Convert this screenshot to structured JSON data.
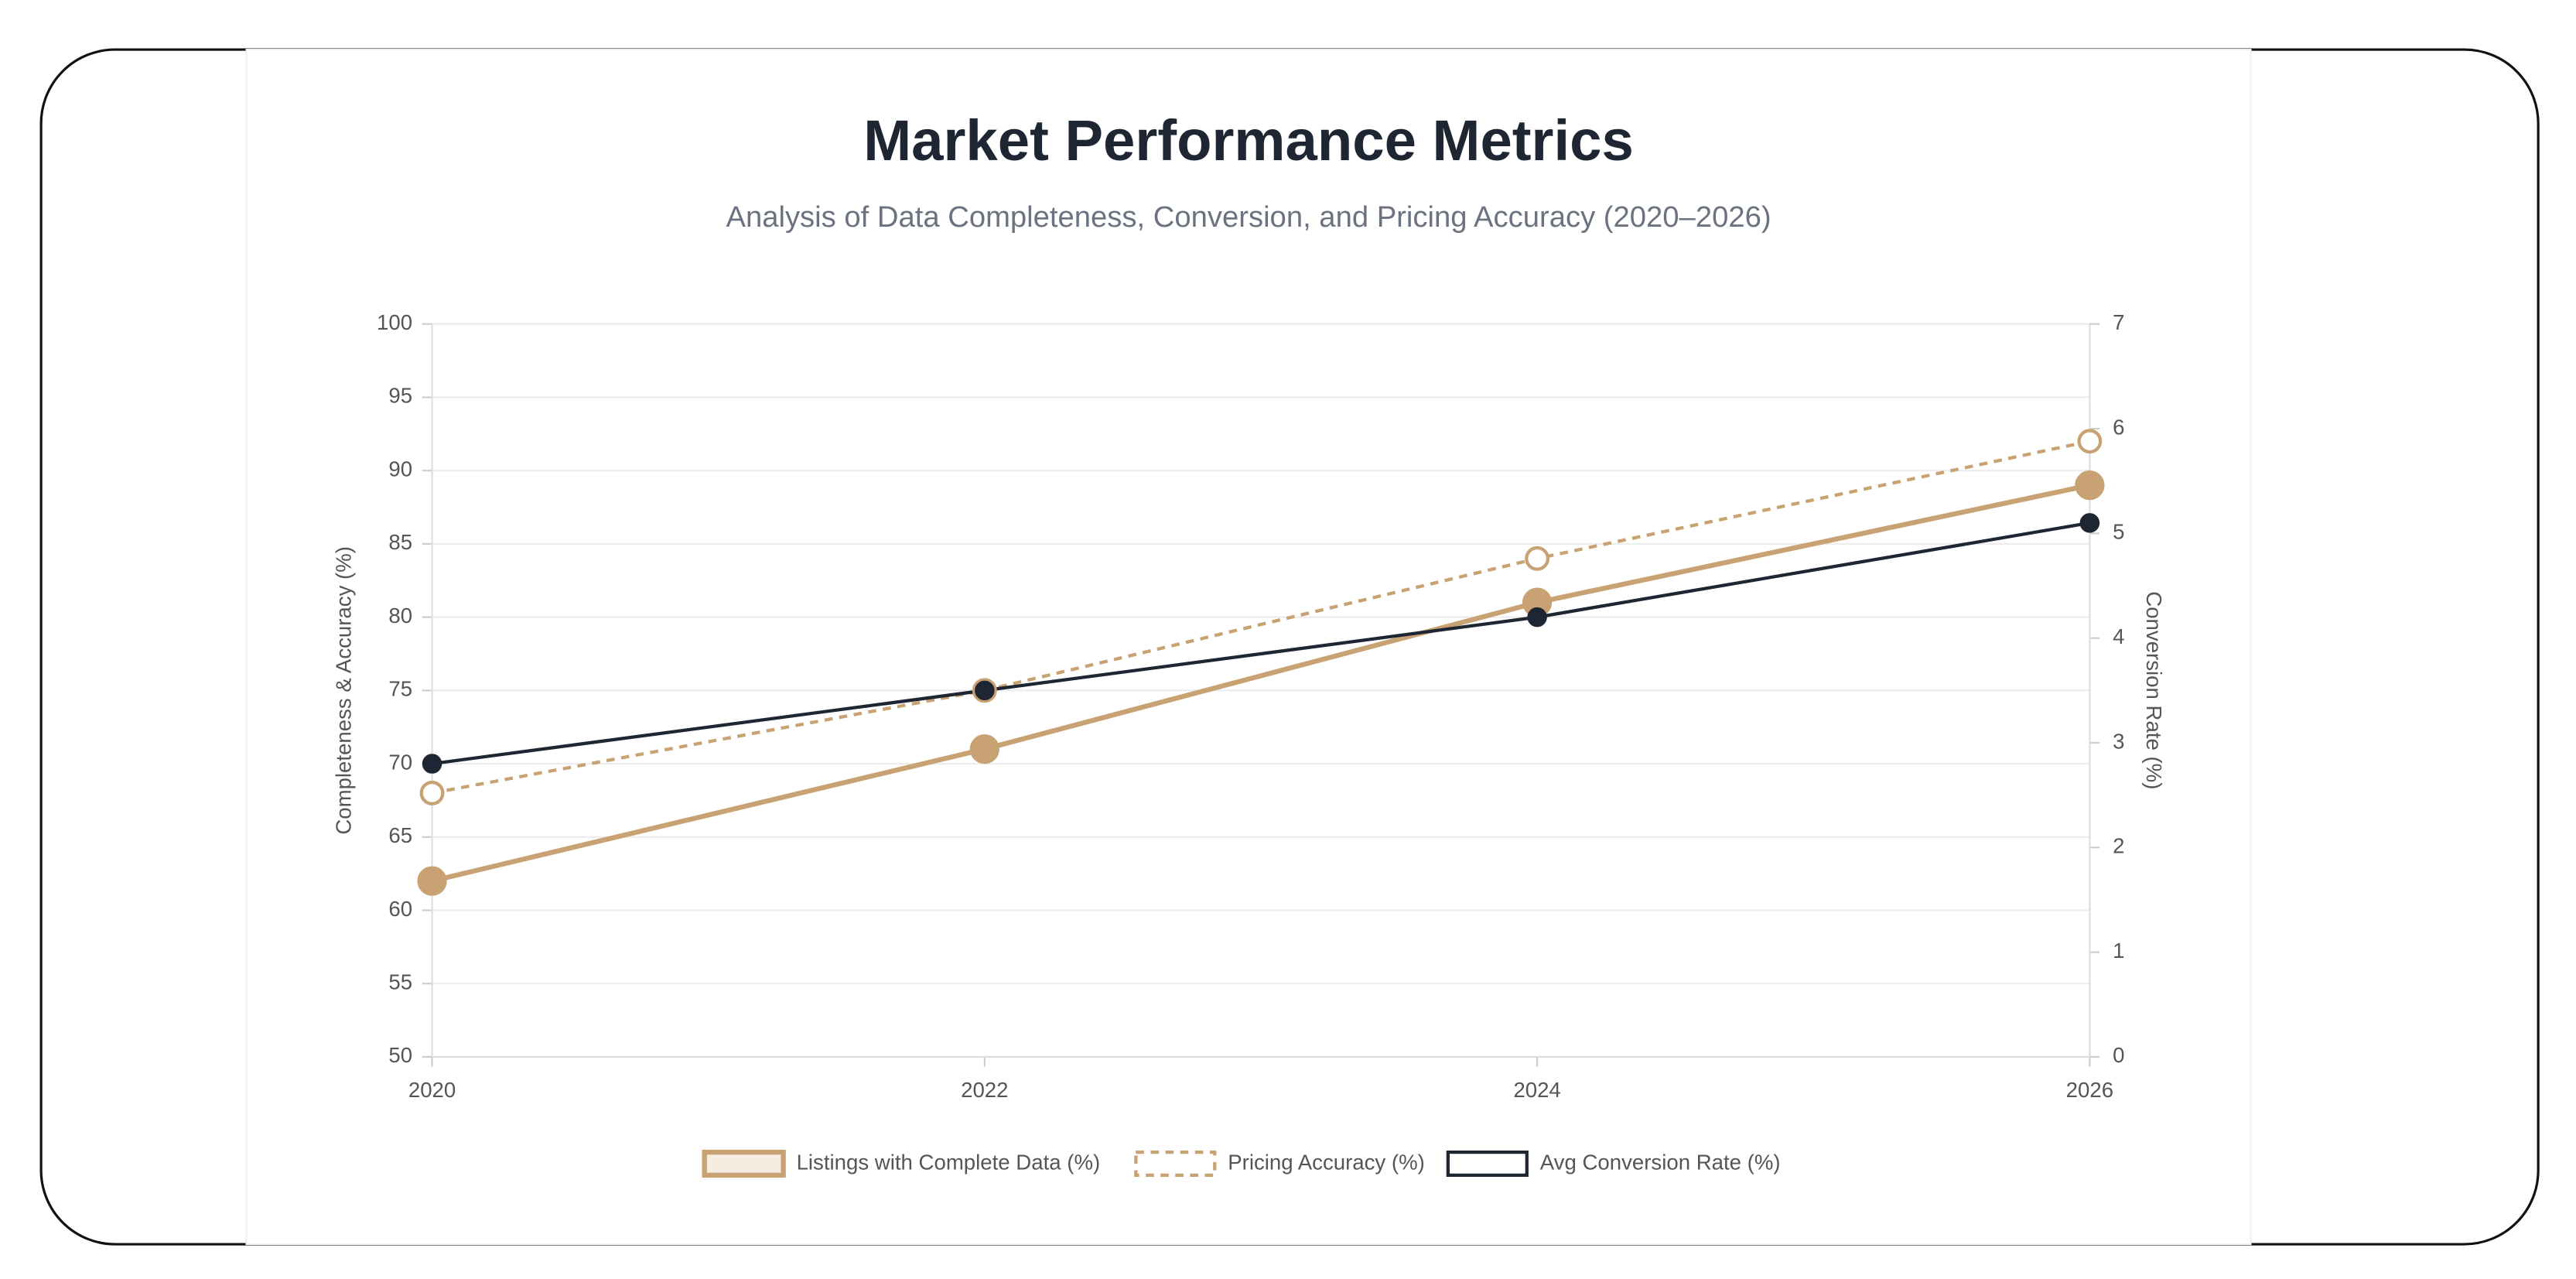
{
  "chart_data": {
    "type": "line",
    "title": "Market Performance Metrics",
    "subtitle": "Analysis of Data Completeness, Conversion, and Pricing Accuracy (2020–2026)",
    "y_label": "Completeness & Accuracy (%)",
    "y2_label": "Conversion Rate (%)",
    "x": [
      2020,
      2022,
      2024,
      2026
    ],
    "xlim": [
      2020,
      2026
    ],
    "xticks": [
      2020,
      2022,
      2024,
      2026
    ],
    "ylim": [
      50,
      100
    ],
    "yticks": [
      50,
      55,
      60,
      65,
      70,
      75,
      80,
      85,
      90,
      95,
      100
    ],
    "y2lim": [
      0,
      7
    ],
    "y2ticks": [
      0,
      1,
      2,
      3,
      4,
      5,
      6,
      7
    ],
    "grid": true,
    "legend": "bottom",
    "series": [
      {
        "name": "Listings with Complete Data (%)",
        "color": "#c8a273",
        "values": [
          62,
          71,
          81,
          89
        ],
        "width": 3,
        "dashed": false,
        "marker_size": 8,
        "marker_fill": "#c8a273",
        "legend_fill": "#f6ede2"
      },
      {
        "name": "Pricing Accuracy (%)",
        "color": "#c8a273",
        "values": [
          68,
          75,
          84,
          92
        ],
        "width": 2,
        "dashed": true,
        "marker_size": 6.5,
        "marker_fill": "#ffffff",
        "legend_fill": "#ffffff"
      },
      {
        "name": "Avg Conversion Rate (%)",
        "color": "#1e2633",
        "values": [
          2.8,
          3.5,
          4.2,
          5.1
        ],
        "axis": "y2",
        "width": 2,
        "dashed": false,
        "marker_size": 5,
        "marker_fill": "#1e2633",
        "legend_fill": "#ffffff"
      }
    ]
  }
}
